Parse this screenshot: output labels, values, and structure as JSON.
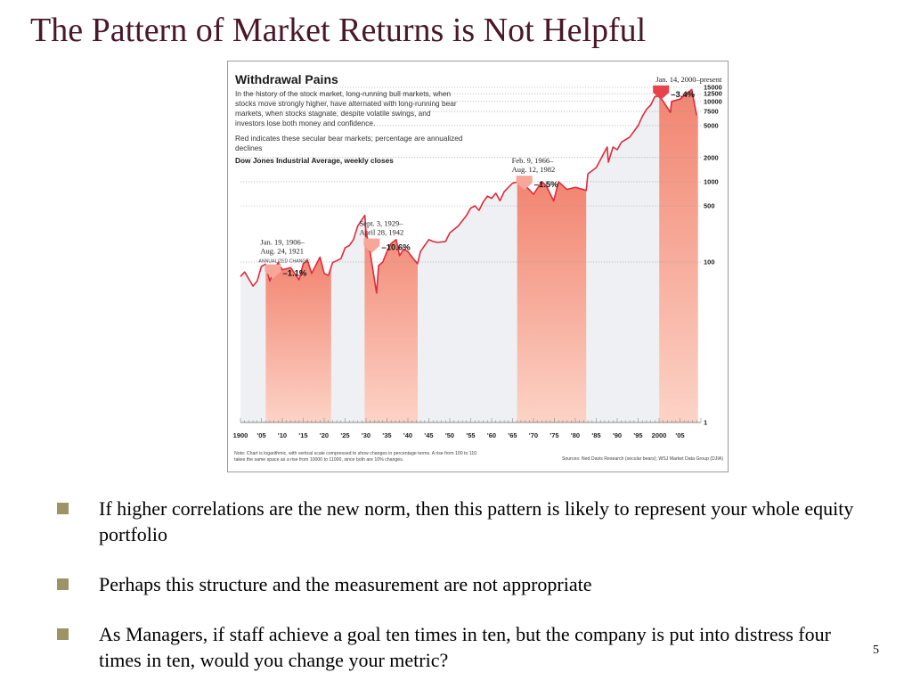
{
  "slide": {
    "title": "The Pattern of Market Returns is Not Helpful",
    "page_number": "5"
  },
  "bullets": [
    "If higher correlations are the new norm, then this pattern is likely to represent your whole equity portfolio",
    "Perhaps this structure and the measurement are not appropriate",
    "As Managers, if staff achieve a goal ten times in ten, but the company is put into distress four times in ten, would you change your metric?"
  ],
  "chart_data": {
    "type": "line",
    "title": "Withdrawal Pains",
    "subtitle_lines": [
      "In the history of the stock market, long-running bull markets, when",
      "stocks move strongly higher, have alternated with long-running bear",
      "markets, when stocks stagnate, despite volatile swings, and",
      "investors lose both money and confidence."
    ],
    "legend_note_lines": [
      "Red indicates these secular bear markets; percentage are annualized",
      "declines"
    ],
    "series_label": "Dow Jones Industrial Average, weekly closes",
    "y_scale": "log",
    "ylim": [
      1,
      25000
    ],
    "xlim": [
      1900,
      2010
    ],
    "y_ticks": [
      {
        "value": 15000,
        "label": "15000"
      },
      {
        "value": 12500,
        "label": "12500"
      },
      {
        "value": 10000,
        "label": "10000"
      },
      {
        "value": 7500,
        "label": "7500"
      },
      {
        "value": 5000,
        "label": "5000"
      },
      {
        "value": 2000,
        "label": "2000"
      },
      {
        "value": 1000,
        "label": "1000"
      },
      {
        "value": 500,
        "label": "500"
      },
      {
        "value": 100,
        "label": "100"
      },
      {
        "value": 1,
        "label": "1"
      }
    ],
    "x_ticks": [
      {
        "value": 1900,
        "label": "1900"
      },
      {
        "value": 1905,
        "label": "'05"
      },
      {
        "value": 1910,
        "label": "'10"
      },
      {
        "value": 1915,
        "label": "'15"
      },
      {
        "value": 1920,
        "label": "'20"
      },
      {
        "value": 1925,
        "label": "'25"
      },
      {
        "value": 1930,
        "label": "'30"
      },
      {
        "value": 1935,
        "label": "'35"
      },
      {
        "value": 1940,
        "label": "'40"
      },
      {
        "value": 1945,
        "label": "'45"
      },
      {
        "value": 1950,
        "label": "'50"
      },
      {
        "value": 1955,
        "label": "'55"
      },
      {
        "value": 1960,
        "label": "'60"
      },
      {
        "value": 1965,
        "label": "'65"
      },
      {
        "value": 1970,
        "label": "'70"
      },
      {
        "value": 1975,
        "label": "'75"
      },
      {
        "value": 1980,
        "label": "'80"
      },
      {
        "value": 1985,
        "label": "'85"
      },
      {
        "value": 1990,
        "label": "'90"
      },
      {
        "value": 1995,
        "label": "'95"
      },
      {
        "value": 2000,
        "label": "2000"
      },
      {
        "value": 2005,
        "label": "'05"
      }
    ],
    "bear_markets": [
      {
        "start": 1906.05,
        "end": 1921.65,
        "period_lines": [
          "Jan. 19, 1906–",
          "Aug. 24, 1921"
        ],
        "change_caption": "ANNUALIZED CHANGE:",
        "change": "–1.1%",
        "level": 62
      },
      {
        "start": 1929.67,
        "end": 1942.33,
        "period_lines": [
          "Sept. 3, 1929–",
          "April 28, 1942"
        ],
        "change_caption": "",
        "change": "–10.6%",
        "level": 130
      },
      {
        "start": 1966.1,
        "end": 1982.6,
        "period_lines": [
          "Feb. 9, 1966–",
          "Aug. 12, 1982"
        ],
        "change_caption": "",
        "change": "–1.5%",
        "level": 790
      },
      {
        "start": 2000.04,
        "end": 2009.3,
        "period_lines": [
          "Jan. 14, 2000–present"
        ],
        "change_caption": "",
        "change": "–3.4%",
        "level": 10500
      }
    ],
    "series": [
      {
        "x": [
          1900,
          1901,
          1903,
          1904,
          1905,
          1906,
          1907,
          1908,
          1909,
          1910,
          1912,
          1914,
          1915,
          1916,
          1917,
          1919,
          1920,
          1921,
          1922,
          1924,
          1925,
          1926,
          1927,
          1928,
          1929.7,
          1930,
          1931,
          1932.5,
          1933,
          1934,
          1935,
          1936,
          1937.2,
          1938,
          1939,
          1940,
          1941,
          1942.3,
          1943,
          1945,
          1946,
          1947,
          1949,
          1950,
          1952,
          1954,
          1955,
          1956,
          1957,
          1958,
          1959,
          1960,
          1961,
          1962,
          1963,
          1965,
          1966,
          1968,
          1970,
          1972,
          1973,
          1974.8,
          1976,
          1978,
          1980,
          1982.6,
          1983,
          1985,
          1987.6,
          1987.9,
          1989,
          1990,
          1991,
          1993,
          1995,
          1996,
          1997,
          1998,
          1999,
          2000,
          2001,
          2002.7,
          2003,
          2005,
          2007.8,
          2008.5,
          2009
        ],
        "y": [
          66,
          75,
          50,
          58,
          88,
          94,
          58,
          80,
          98,
          80,
          85,
          60,
          95,
          105,
          72,
          115,
          72,
          68,
          98,
          110,
          150,
          160,
          190,
          280,
          381,
          240,
          130,
          41,
          90,
          100,
          135,
          170,
          190,
          120,
          145,
          135,
          115,
          95,
          135,
          190,
          180,
          175,
          180,
          230,
          280,
          380,
          470,
          500,
          440,
          560,
          660,
          620,
          720,
          580,
          750,
          960,
          990,
          900,
          700,
          1000,
          900,
          577,
          1000,
          800,
          850,
          780,
          1250,
          1500,
          2700,
          1750,
          2700,
          2500,
          3100,
          3600,
          5000,
          6500,
          8000,
          9000,
          11500,
          11700,
          10000,
          7300,
          10000,
          10700,
          14100,
          9000,
          6700
        ]
      }
    ],
    "footnote_lines": [
      "Note: Chart is logarithmic, with vertical scale compressed to show changes in percentage terms. A rise from 100 to 110",
      " takes the same space as a rise from 10000 to 11000, since both are 10% changes."
    ],
    "source": "Sources: Ned Davis Research (secular bears); WSJ Market Data Group (DJIA)"
  }
}
